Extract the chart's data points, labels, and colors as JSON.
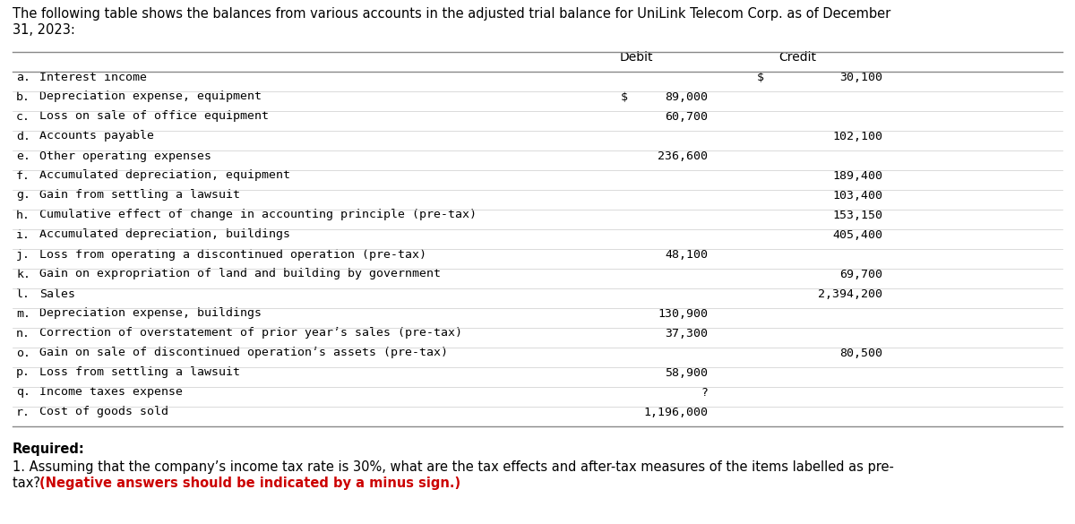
{
  "title_line1": "The following table shows the balances from various accounts in the adjusted trial balance for UniLink Telecom Corp. as of December",
  "title_line2": "31, 2023:",
  "header_debit": "Debit",
  "header_credit": "Credit",
  "rows": [
    {
      "label": "a.",
      "desc": "Interest income",
      "debit": "",
      "credit": "30,100",
      "dollar_debit": false,
      "dollar_credit": true
    },
    {
      "label": "b.",
      "desc": "Depreciation expense, equipment",
      "debit": "89,000",
      "credit": "",
      "dollar_debit": true,
      "dollar_credit": false
    },
    {
      "label": "c.",
      "desc": "Loss on sale of office equipment",
      "debit": "60,700",
      "credit": "",
      "dollar_debit": false,
      "dollar_credit": false
    },
    {
      "label": "d.",
      "desc": "Accounts payable",
      "debit": "",
      "credit": "102,100",
      "dollar_debit": false,
      "dollar_credit": false
    },
    {
      "label": "e.",
      "desc": "Other operating expenses",
      "debit": "236,600",
      "credit": "",
      "dollar_debit": false,
      "dollar_credit": false
    },
    {
      "label": "f.",
      "desc": "Accumulated depreciation, equipment",
      "debit": "",
      "credit": "189,400",
      "dollar_debit": false,
      "dollar_credit": false
    },
    {
      "label": "g.",
      "desc": "Gain from settling a lawsuit",
      "debit": "",
      "credit": "103,400",
      "dollar_debit": false,
      "dollar_credit": false
    },
    {
      "label": "h.",
      "desc": "Cumulative effect of change in accounting principle (pre-tax)",
      "debit": "",
      "credit": "153,150",
      "dollar_debit": false,
      "dollar_credit": false
    },
    {
      "label": "i.",
      "desc": "Accumulated depreciation, buildings",
      "debit": "",
      "credit": "405,400",
      "dollar_debit": false,
      "dollar_credit": false
    },
    {
      "label": "j.",
      "desc": "Loss from operating a discontinued operation (pre-tax)",
      "debit": "48,100",
      "credit": "",
      "dollar_debit": false,
      "dollar_credit": false
    },
    {
      "label": "k.",
      "desc": "Gain on expropriation of land and building by government",
      "debit": "",
      "credit": "69,700",
      "dollar_debit": false,
      "dollar_credit": false
    },
    {
      "label": "l.",
      "desc": "Sales",
      "debit": "",
      "credit": "2,394,200",
      "dollar_debit": false,
      "dollar_credit": false
    },
    {
      "label": "m.",
      "desc": "Depreciation expense, buildings",
      "debit": "130,900",
      "credit": "",
      "dollar_debit": false,
      "dollar_credit": false
    },
    {
      "label": "n.",
      "desc": "Correction of overstatement of prior year’s sales (pre-tax)",
      "debit": "37,300",
      "credit": "",
      "dollar_debit": false,
      "dollar_credit": false
    },
    {
      "label": "o.",
      "desc": "Gain on sale of discontinued operation’s assets (pre-tax)",
      "debit": "",
      "credit": "80,500",
      "dollar_debit": false,
      "dollar_credit": false
    },
    {
      "label": "p.",
      "desc": "Loss from settling a lawsuit",
      "debit": "58,900",
      "credit": "",
      "dollar_debit": false,
      "dollar_credit": false
    },
    {
      "label": "q.",
      "desc": "Income taxes expense",
      "debit": "?",
      "credit": "",
      "dollar_debit": false,
      "dollar_credit": false
    },
    {
      "label": "r.",
      "desc": "Cost of goods sold",
      "debit": "1,196,000",
      "credit": "",
      "dollar_debit": false,
      "dollar_credit": false
    }
  ],
  "required_text": "Required:",
  "req1_black": "1. Assuming that the company’s income tax rate is 30%, what are the tax effects and after-tax measures of the items labelled as pre-",
  "req2_black": "tax? ",
  "req2_red_bold": "(Negative answers should be indicated by a minus sign.)",
  "bg_color": "#ffffff",
  "table_header_bg": "#d3d3d8",
  "row_alt_bg": "#efefef",
  "row_white_bg": "#ffffff",
  "border_color": "#888888",
  "row_border_color": "#cccccc",
  "text_color": "#000000",
  "title_fontsize": 10.5,
  "header_fontsize": 10.0,
  "row_fontsize": 9.5,
  "req_fontsize": 10.5
}
